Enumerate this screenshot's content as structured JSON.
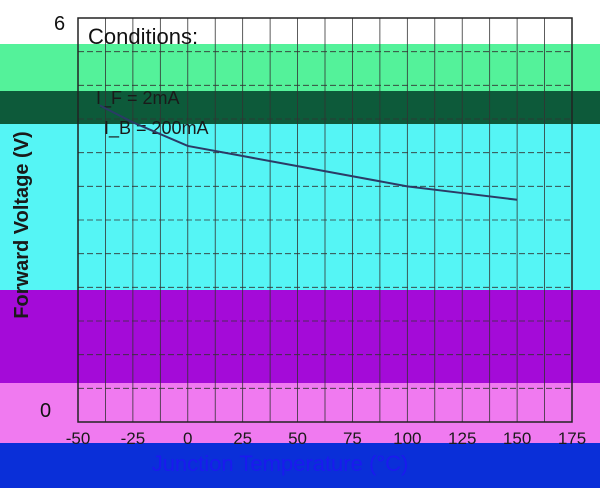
{
  "chart_data": {
    "type": "line",
    "conditions_label": "Conditions:",
    "conditions": [
      "I_F = 2mA",
      "I_B = 200mA"
    ],
    "xlabel": "Junction Temperature (°C)",
    "ylabel": "Forward Voltage (V)",
    "y_tick_labels": [
      "0",
      "",
      "",
      "",
      "",
      "6"
    ],
    "x_tick_labels": [
      "-50",
      "-25",
      "0",
      "25",
      "50",
      "75",
      "100",
      "125",
      "150",
      "175"
    ],
    "xlim": [
      -50,
      175
    ],
    "ylim": [
      0,
      6
    ],
    "grid": true,
    "series": [
      {
        "x": [
          -40,
          -25,
          0,
          25,
          50,
          75,
          100,
          125,
          150
        ],
        "y": [
          4.7,
          4.45,
          4.1,
          3.95,
          3.8,
          3.65,
          3.5,
          3.4,
          3.3
        ]
      }
    ],
    "band_colors": {
      "green": "#54f29a",
      "dark_band": "#0d5a3a",
      "cyan": "#55f5f5",
      "purple": "#a40bd8",
      "pink": "#f07af0",
      "blue": "#0a2fd8"
    }
  }
}
